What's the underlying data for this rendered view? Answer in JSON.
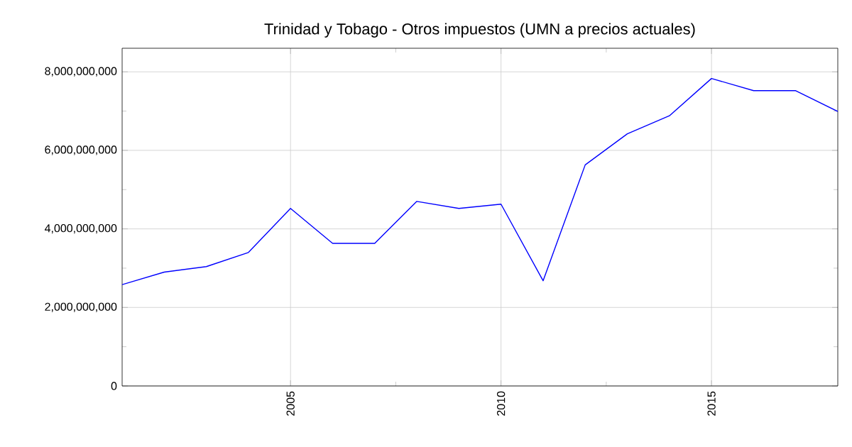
{
  "chart_data": {
    "type": "line",
    "title": "Trinidad y Tobago - Otros impuestos (UMN a precios actuales)",
    "x": [
      2001,
      2002,
      2003,
      2004,
      2005,
      2006,
      2007,
      2008,
      2009,
      2010,
      2011,
      2012,
      2013,
      2014,
      2015,
      2016,
      2017,
      2018
    ],
    "series": [
      {
        "color": "#0000ff",
        "values": [
          2580000000,
          2900000000,
          3040000000,
          3400000000,
          4520000000,
          3630000000,
          3630000000,
          4700000000,
          4520000000,
          4630000000,
          2680000000,
          5630000000,
          6420000000,
          6880000000,
          7830000000,
          7520000000,
          7520000000,
          6990000000
        ]
      }
    ],
    "xlim": [
      2001,
      2018
    ],
    "ylim": [
      0,
      8600000000
    ],
    "xticks": [
      2005,
      2010,
      2015
    ],
    "yticks": [
      {
        "value": 0,
        "label": "0"
      },
      {
        "value": 2000000000,
        "label": "2,000,000,000"
      },
      {
        "value": 4000000000,
        "label": "4,000,000,000"
      },
      {
        "value": 6000000000,
        "label": "6,000,000,000"
      },
      {
        "value": 8000000000,
        "label": "8,000,000,000"
      }
    ],
    "grid": true,
    "marker": "none",
    "line_style": "solid"
  }
}
